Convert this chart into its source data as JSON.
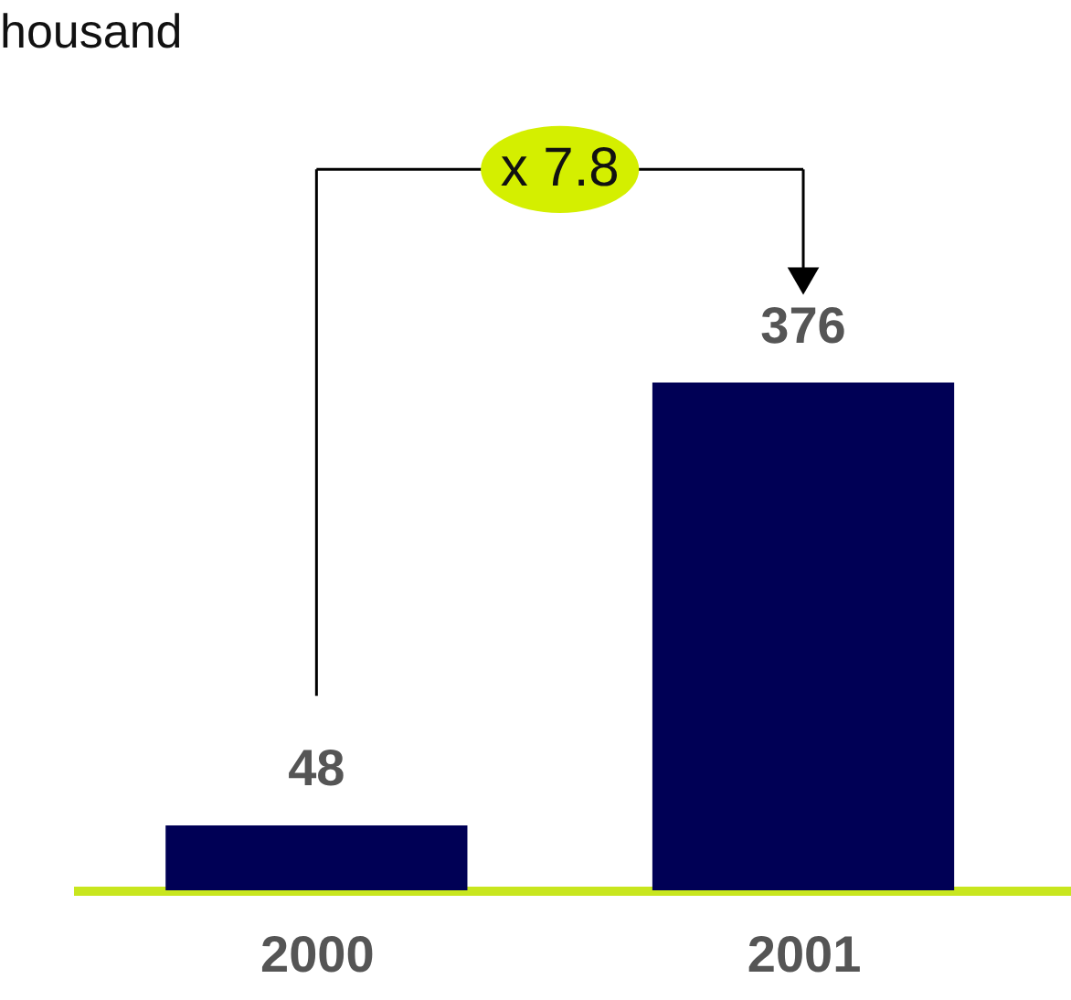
{
  "chart_data": {
    "type": "bar",
    "categories": [
      "2000",
      "2001"
    ],
    "series": [
      {
        "color": "#000055",
        "values": [
          48,
          376
        ]
      }
    ],
    "data_labels": true,
    "tick_labels": "x",
    "annotations": [
      "housand",
      "x 7.8"
    ]
  }
}
